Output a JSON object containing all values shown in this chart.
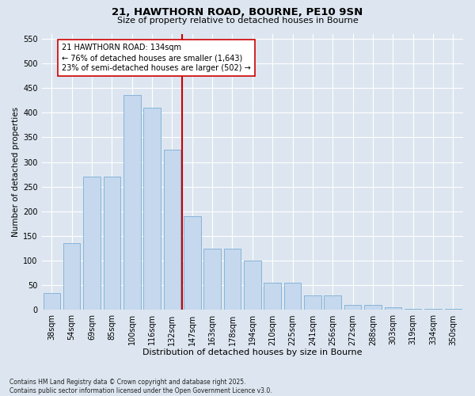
{
  "title_line1": "21, HAWTHORN ROAD, BOURNE, PE10 9SN",
  "title_line2": "Size of property relative to detached houses in Bourne",
  "xlabel": "Distribution of detached houses by size in Bourne",
  "ylabel": "Number of detached properties",
  "categories": [
    "38sqm",
    "54sqm",
    "69sqm",
    "85sqm",
    "100sqm",
    "116sqm",
    "132sqm",
    "147sqm",
    "163sqm",
    "178sqm",
    "194sqm",
    "210sqm",
    "225sqm",
    "241sqm",
    "256sqm",
    "272sqm",
    "288sqm",
    "303sqm",
    "319sqm",
    "334sqm",
    "350sqm"
  ],
  "values": [
    35,
    135,
    270,
    270,
    435,
    410,
    325,
    190,
    125,
    125,
    100,
    55,
    55,
    30,
    30,
    10,
    10,
    5,
    2,
    2,
    2
  ],
  "bar_color": "#c5d8ee",
  "bar_edge_color": "#7aaed4",
  "vline_x_idx": 6,
  "vline_color": "#cc0000",
  "annotation_text": "21 HAWTHORN ROAD: 134sqm\n← 76% of detached houses are smaller (1,643)\n23% of semi-detached houses are larger (502) →",
  "annotation_box_facecolor": "#ffffff",
  "annotation_box_edgecolor": "#cc0000",
  "ylim": [
    0,
    560
  ],
  "yticks": [
    0,
    50,
    100,
    150,
    200,
    250,
    300,
    350,
    400,
    450,
    500,
    550
  ],
  "bg_color": "#dde6f0",
  "grid_color": "#ffffff",
  "title_fontsize": 9.5,
  "subtitle_fontsize": 8.0,
  "ylabel_fontsize": 7.5,
  "xlabel_fontsize": 8.0,
  "tick_fontsize": 7.0,
  "footer": "Contains HM Land Registry data © Crown copyright and database right 2025.\nContains public sector information licensed under the Open Government Licence v3.0."
}
